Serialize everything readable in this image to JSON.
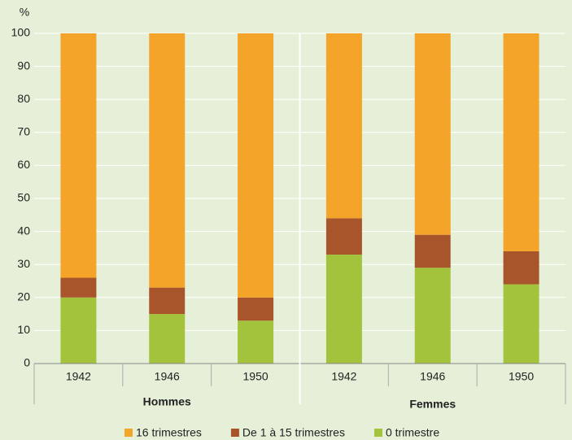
{
  "chart_data": {
    "type": "stacked_bar",
    "y_label": "%",
    "categories": [
      "1942",
      "1946",
      "1950",
      "1942",
      "1946",
      "1950"
    ],
    "groups": [
      "Hommes",
      "Femmes"
    ],
    "series": [
      {
        "name": "16 trimestres",
        "color": "#f5a42a",
        "values": [
          74,
          77,
          80,
          56,
          61,
          66
        ]
      },
      {
        "name": "De 1 à 15 trimestres",
        "color": "#a8552b",
        "values": [
          6,
          8,
          7,
          11,
          10,
          10
        ]
      },
      {
        "name": "0 trimestre",
        "color": "#a4c33c",
        "values": [
          20,
          15,
          13,
          33,
          29,
          24
        ]
      }
    ],
    "ylim": [
      0,
      100
    ],
    "yticks": [
      0,
      10,
      20,
      30,
      40,
      50,
      60,
      70,
      80,
      90,
      100
    ],
    "grid": true
  }
}
